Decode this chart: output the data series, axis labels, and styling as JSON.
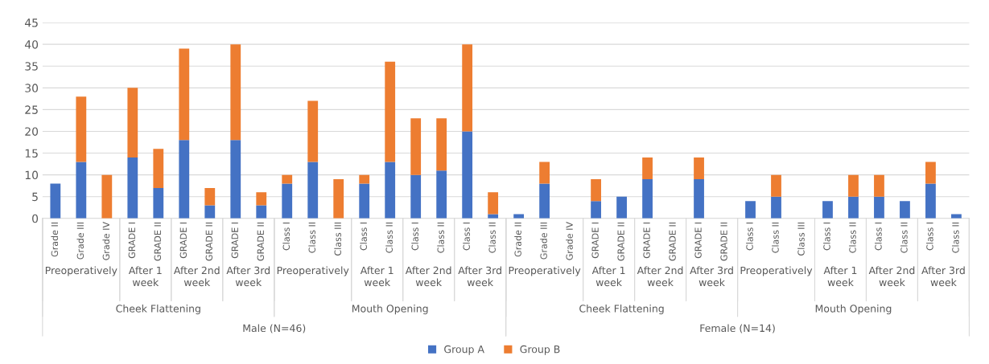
{
  "chart_data": {
    "type": "bar",
    "stacked": true,
    "categories": [
      "Grade II",
      "Grade III",
      "Grade IV",
      "GRADE I",
      "GRADE II",
      "GRADE I",
      "GRADE II",
      "GRADE I",
      "GRADE II",
      "Class I",
      "Class II",
      "Class III",
      "Class I",
      "Class II",
      "Class I",
      "Class II",
      "Class I",
      "Class II",
      "Grade II",
      "Grade III",
      "Grade IV",
      "GRADE I",
      "GRADE II",
      "GRADE I",
      "GRADE II",
      "GRADE I",
      "GRADE II",
      "Class I",
      "Class II",
      "Class III",
      "Class I",
      "Class II",
      "Class I",
      "Class II",
      "Class I",
      "Class II"
    ],
    "series": [
      {
        "name": "Group A",
        "color": "#4472c4",
        "values": [
          8,
          13,
          0,
          14,
          7,
          18,
          3,
          18,
          3,
          8,
          13,
          0,
          8,
          13,
          10,
          11,
          20,
          1,
          1,
          8,
          0,
          4,
          5,
          9,
          0,
          9,
          0,
          4,
          5,
          0,
          4,
          5,
          5,
          4,
          8,
          1
        ]
      },
      {
        "name": "Group B",
        "color": "#ed7d31",
        "values": [
          0,
          15,
          10,
          16,
          9,
          21,
          4,
          22,
          3,
          2,
          14,
          9,
          2,
          23,
          13,
          12,
          20,
          5,
          0,
          5,
          0,
          5,
          0,
          5,
          0,
          5,
          0,
          0,
          5,
          0,
          0,
          5,
          5,
          0,
          5,
          0
        ]
      }
    ],
    "annotations": [
      "Preoperatively",
      "After 1 week",
      "After 2nd week",
      "After 3rd week",
      "Preoperatively",
      "After 1 week",
      "After 2nd week",
      "After 3rd week",
      "Preoperatively",
      "After 1 week",
      "After 2nd week",
      "After 3rd week",
      "Preoperatively",
      "After 1 week",
      "After 2nd week",
      "After 3rd week",
      "Cheek Flattening",
      "Mouth Opening",
      "Cheek Flattening",
      "Mouth Opening",
      "Male (N=46)",
      "Female (N=14)"
    ],
    "ylim": [
      0,
      45
    ],
    "yticks": [
      0,
      5,
      10,
      15,
      20,
      25,
      30,
      35,
      40,
      45
    ],
    "grid": "y",
    "legend": "bottom"
  }
}
